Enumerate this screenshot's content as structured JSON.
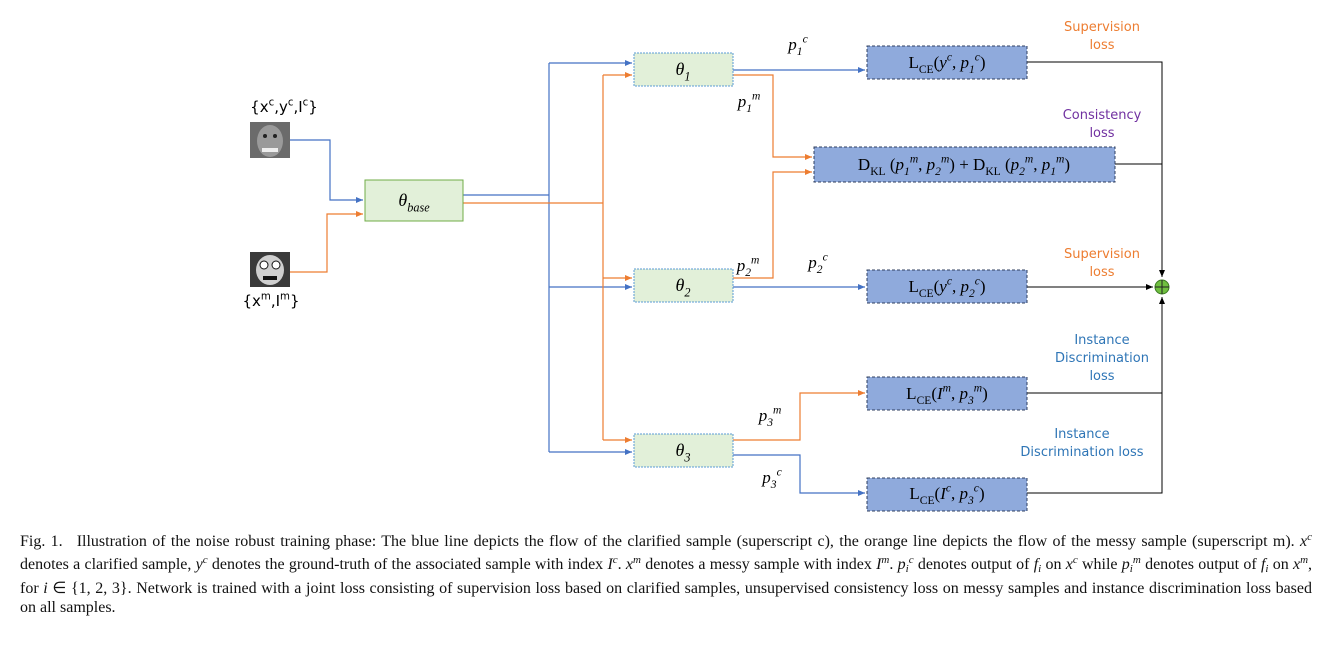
{
  "inputs": [
    {
      "label": [
        {
          "text": "{x"
        },
        {
          "sup": "c"
        },
        {
          "text": ",y"
        },
        {
          "sup": "c"
        },
        {
          "text": ",I"
        },
        {
          "sup": "c"
        },
        {
          "text": "}"
        }
      ]
    },
    {
      "label": [
        {
          "text": "{x"
        },
        {
          "sup": "m"
        },
        {
          "text": ",I"
        },
        {
          "sup": "m"
        },
        {
          "text": "}"
        }
      ]
    }
  ],
  "nodes": [
    {
      "label": [
        {
          "it": "θ"
        },
        {
          "sub": "base"
        }
      ]
    },
    {
      "label": [
        {
          "it": "θ"
        },
        {
          "sub": "1"
        }
      ]
    },
    {
      "label": [
        {
          "it": "θ"
        },
        {
          "sub": "2"
        }
      ]
    },
    {
      "label": [
        {
          "it": "θ"
        },
        {
          "sub": "3"
        }
      ]
    }
  ],
  "edge_labels": [
    [
      {
        "it": "p"
      },
      {
        "sub": "1"
      },
      {
        "sup": "c"
      }
    ],
    [
      {
        "it": "p"
      },
      {
        "sub": "1"
      },
      {
        "sup": "m"
      }
    ],
    [
      {
        "it": "p"
      },
      {
        "sub": "2"
      },
      {
        "sup": "m"
      }
    ],
    [
      {
        "it": "p"
      },
      {
        "sub": "2"
      },
      {
        "sup": "c"
      }
    ],
    [
      {
        "it": "p"
      },
      {
        "sub": "3"
      },
      {
        "sup": "m"
      }
    ],
    [
      {
        "it": "p"
      },
      {
        "sub": "3"
      },
      {
        "sup": "c"
      }
    ]
  ],
  "losses": [
    [
      {
        "text": "L"
      },
      {
        "sub": "CE"
      },
      {
        "text": "("
      },
      {
        "it": "y"
      },
      {
        "sup": "c"
      },
      {
        "text": ", "
      },
      {
        "it": "p"
      },
      {
        "sub": "1"
      },
      {
        "sup": "c"
      },
      {
        "text": ")"
      }
    ],
    [
      {
        "text": "D"
      },
      {
        "sub": "KL"
      },
      {
        "text": " ("
      },
      {
        "it": "p"
      },
      {
        "sub": "1"
      },
      {
        "sup": "m"
      },
      {
        "text": ", "
      },
      {
        "it": "p"
      },
      {
        "sub": "2"
      },
      {
        "sup": "m"
      },
      {
        "text": ") + D"
      },
      {
        "sub": "KL"
      },
      {
        "text": " ("
      },
      {
        "it": "p"
      },
      {
        "sub": "2"
      },
      {
        "sup": "m"
      },
      {
        "text": ", "
      },
      {
        "it": "p"
      },
      {
        "sub": "1"
      },
      {
        "sup": "m"
      },
      {
        "text": ")"
      }
    ],
    [
      {
        "text": "L"
      },
      {
        "sub": "CE"
      },
      {
        "text": "("
      },
      {
        "it": "y"
      },
      {
        "sup": "c"
      },
      {
        "text": ", "
      },
      {
        "it": "p"
      },
      {
        "sub": "2"
      },
      {
        "sup": "c"
      },
      {
        "text": ")"
      }
    ],
    [
      {
        "text": "L"
      },
      {
        "sub": "CE"
      },
      {
        "text": "("
      },
      {
        "it": "I"
      },
      {
        "sup": "m"
      },
      {
        "text": ", "
      },
      {
        "it": "p"
      },
      {
        "sub": "3"
      },
      {
        "sup": "m"
      },
      {
        "text": ")"
      }
    ],
    [
      {
        "text": "L"
      },
      {
        "sub": "CE"
      },
      {
        "text": "("
      },
      {
        "it": "I"
      },
      {
        "sup": "c"
      },
      {
        "text": ", "
      },
      {
        "it": "p"
      },
      {
        "sub": "3"
      },
      {
        "sup": "c"
      },
      {
        "text": ")"
      }
    ]
  ],
  "notes": [
    [
      "Supervision",
      "loss"
    ],
    [
      "Consistency",
      "loss"
    ],
    [
      "Supervision",
      "loss"
    ],
    [
      "Instance",
      "Discrimination",
      "loss"
    ],
    [
      "Instance",
      "Discrimination loss"
    ]
  ],
  "caption": {
    "label": "Fig. 1.",
    "runs": [
      {
        "text": "Illustration of the noise robust training phase: The blue line depicts the flow of the clarified sample (superscript c), the orange line depicts the flow of the messy sample (superscript m). "
      },
      {
        "it": "x"
      },
      {
        "sup": "c"
      },
      {
        "text": " denotes a clarified sample, "
      },
      {
        "it": "y"
      },
      {
        "sup": "c"
      },
      {
        "text": " denotes the ground-truth of the associated sample with index "
      },
      {
        "it": "I"
      },
      {
        "sup": "c"
      },
      {
        "text": ". "
      },
      {
        "it": "x"
      },
      {
        "sup": "m"
      },
      {
        "text": " denotes a messy sample with index "
      },
      {
        "it": "I"
      },
      {
        "sup": "m"
      },
      {
        "text": ". "
      },
      {
        "it": "p"
      },
      {
        "sub": "i"
      },
      {
        "sup": "c"
      },
      {
        "text": " denotes output of "
      },
      {
        "it": "f"
      },
      {
        "sub": "i"
      },
      {
        "text": " on "
      },
      {
        "it": "x"
      },
      {
        "sup": "c"
      },
      {
        "text": " while "
      },
      {
        "it": "p"
      },
      {
        "sub": "i"
      },
      {
        "sup": "m"
      },
      {
        "text": " denotes output of "
      },
      {
        "it": "f"
      },
      {
        "sub": "i"
      },
      {
        "text": " on "
      },
      {
        "it": "x"
      },
      {
        "sup": "m"
      },
      {
        "text": ", for "
      },
      {
        "it": "i"
      },
      {
        "text": " ∈ {1, 2, 3}. Network is trained with a joint loss consisting of supervision loss based on clarified samples, unsupervised consistency loss on messy samples and instance discrimination loss based on all samples."
      }
    ]
  }
}
